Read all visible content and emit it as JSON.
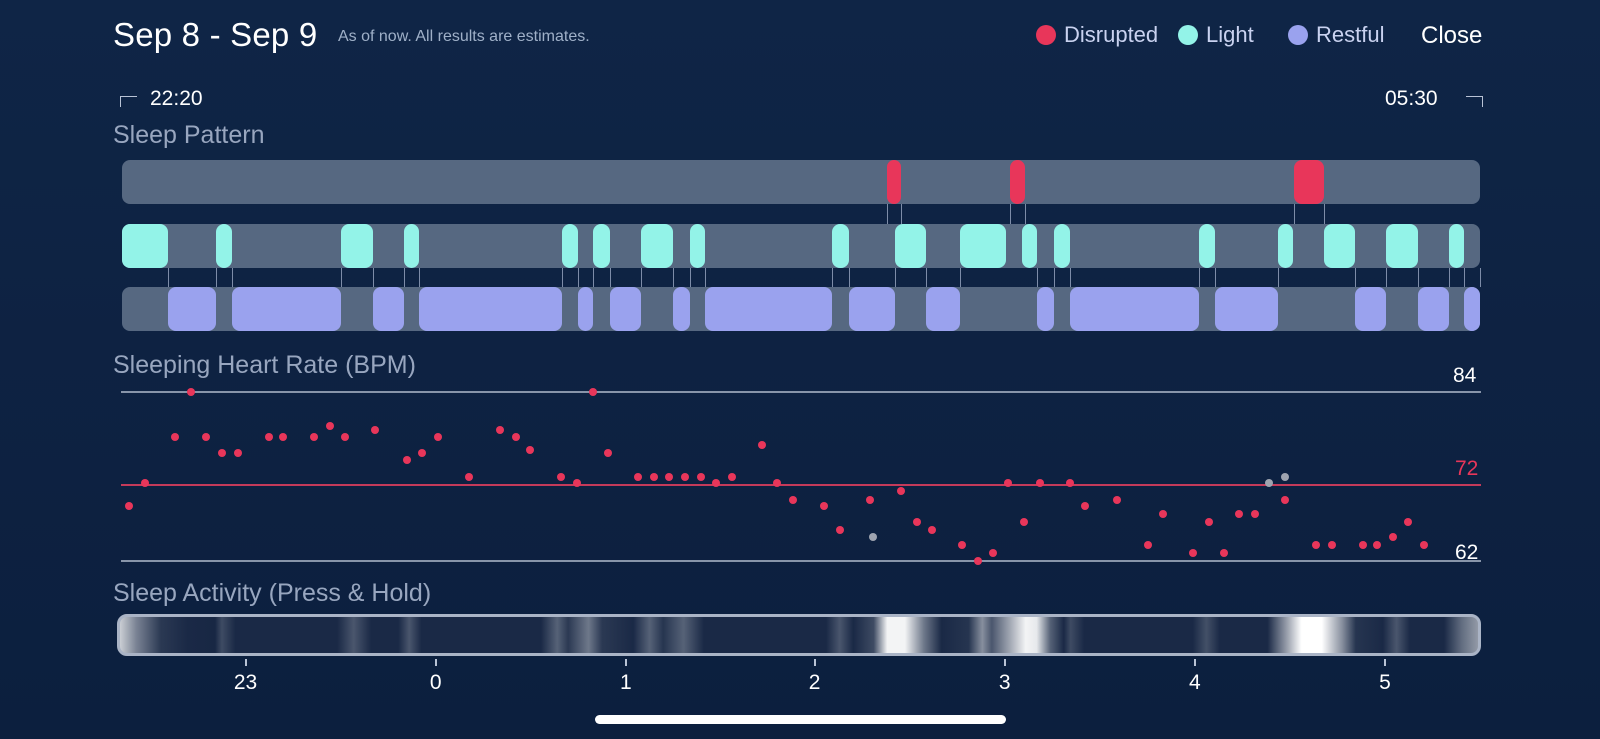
{
  "header": {
    "title": "Sep 8 - Sep 9",
    "subtitle": "As of now. All results are estimates.",
    "close_label": "Close"
  },
  "legend": [
    {
      "label": "Disrupted",
      "color": "#e8365a"
    },
    {
      "label": "Light",
      "color": "#93f3e8"
    },
    {
      "label": "Restful",
      "color": "#9aa2ee"
    }
  ],
  "time_range": {
    "start": "22:20",
    "end": "05:30"
  },
  "sleep_pattern": {
    "title": "Sleep Pattern",
    "disrupted": [
      [
        0.563,
        0.574
      ],
      [
        0.654,
        0.665
      ],
      [
        0.863,
        0.885
      ]
    ],
    "light": [
      [
        0.0,
        0.034
      ],
      [
        0.069,
        0.081
      ],
      [
        0.161,
        0.185
      ],
      [
        0.208,
        0.219
      ],
      [
        0.324,
        0.336
      ],
      [
        0.347,
        0.359
      ],
      [
        0.382,
        0.406
      ],
      [
        0.418,
        0.429
      ],
      [
        0.523,
        0.535
      ],
      [
        0.569,
        0.592
      ],
      [
        0.617,
        0.651
      ],
      [
        0.663,
        0.674
      ],
      [
        0.686,
        0.698
      ],
      [
        0.793,
        0.805
      ],
      [
        0.851,
        0.862
      ],
      [
        0.885,
        0.908
      ],
      [
        0.931,
        0.954
      ],
      [
        0.977,
        0.988
      ]
    ],
    "restful": [
      [
        0.034,
        0.069
      ],
      [
        0.081,
        0.161
      ],
      [
        0.185,
        0.208
      ],
      [
        0.219,
        0.324
      ],
      [
        0.336,
        0.347
      ],
      [
        0.359,
        0.382
      ],
      [
        0.406,
        0.418
      ],
      [
        0.429,
        0.523
      ],
      [
        0.535,
        0.569
      ],
      [
        0.592,
        0.617
      ],
      [
        0.674,
        0.686
      ],
      [
        0.698,
        0.793
      ],
      [
        0.805,
        0.851
      ],
      [
        0.908,
        0.931
      ],
      [
        0.954,
        0.977
      ],
      [
        0.988,
        1.0
      ]
    ]
  },
  "heart_rate": {
    "title": "Sleeping Heart Rate (BPM)",
    "max_label": "84",
    "avg_label": "72",
    "min_label": "62",
    "ymin": 62,
    "ymax": 84,
    "avg": 72,
    "points": [
      [
        0.005,
        69.1
      ],
      [
        0.017,
        72.1
      ],
      [
        0.04,
        78.1
      ],
      [
        0.052,
        84.0
      ],
      [
        0.063,
        78.1
      ],
      [
        0.075,
        76.1
      ],
      [
        0.087,
        76.1
      ],
      [
        0.11,
        78.1
      ],
      [
        0.121,
        78.1
      ],
      [
        0.144,
        78.1
      ],
      [
        0.156,
        79.6
      ],
      [
        0.167,
        78.1
      ],
      [
        0.19,
        79.0
      ],
      [
        0.214,
        75.1
      ],
      [
        0.225,
        76.1
      ],
      [
        0.237,
        78.1
      ],
      [
        0.26,
        73.0
      ],
      [
        0.283,
        79.0
      ],
      [
        0.295,
        78.1
      ],
      [
        0.306,
        76.5
      ],
      [
        0.329,
        73.0
      ],
      [
        0.341,
        72.1
      ],
      [
        0.353,
        84.0
      ],
      [
        0.364,
        76.1
      ],
      [
        0.387,
        73.0
      ],
      [
        0.399,
        73.0
      ],
      [
        0.41,
        73.0
      ],
      [
        0.422,
        73.0
      ],
      [
        0.434,
        73.0
      ],
      [
        0.445,
        72.1
      ],
      [
        0.457,
        73.0
      ],
      [
        0.48,
        77.1
      ],
      [
        0.491,
        72.1
      ],
      [
        0.503,
        70.0
      ],
      [
        0.526,
        69.1
      ],
      [
        0.538,
        66.1
      ],
      [
        0.561,
        70.0
      ],
      [
        0.584,
        71.1
      ],
      [
        0.596,
        67.1
      ],
      [
        0.607,
        66.1
      ],
      [
        0.63,
        64.1
      ],
      [
        0.642,
        62.0
      ],
      [
        0.653,
        63.0
      ],
      [
        0.664,
        72.1
      ],
      [
        0.676,
        67.1
      ],
      [
        0.688,
        72.1
      ],
      [
        0.711,
        72.1
      ],
      [
        0.722,
        69.1
      ],
      [
        0.746,
        70.0
      ],
      [
        0.769,
        64.1
      ],
      [
        0.78,
        68.1
      ],
      [
        0.803,
        63.0
      ],
      [
        0.815,
        67.1
      ],
      [
        0.826,
        63.0
      ],
      [
        0.837,
        68.1
      ],
      [
        0.849,
        68.1
      ],
      [
        0.872,
        70.0
      ],
      [
        0.895,
        64.1
      ],
      [
        0.907,
        64.1
      ],
      [
        0.93,
        64.1
      ],
      [
        0.941,
        64.1
      ],
      [
        0.953,
        65.1
      ],
      [
        0.964,
        67.1
      ],
      [
        0.976,
        64.1
      ]
    ],
    "gray_points": [
      [
        0.563,
        65.1
      ],
      [
        0.86,
        72.1
      ],
      [
        0.872,
        73.0
      ]
    ]
  },
  "sleep_activity": {
    "title": "Sleep Activity (Press & Hold)",
    "intensity": [
      [
        0.0,
        0.78
      ],
      [
        0.012,
        0.45
      ],
      [
        0.03,
        0.12
      ],
      [
        0.05,
        0.05
      ],
      [
        0.07,
        0.04
      ],
      [
        0.075,
        0.2
      ],
      [
        0.085,
        0.05
      ],
      [
        0.16,
        0.05
      ],
      [
        0.172,
        0.25
      ],
      [
        0.185,
        0.05
      ],
      [
        0.205,
        0.05
      ],
      [
        0.213,
        0.25
      ],
      [
        0.222,
        0.05
      ],
      [
        0.31,
        0.05
      ],
      [
        0.322,
        0.3
      ],
      [
        0.33,
        0.12
      ],
      [
        0.345,
        0.4
      ],
      [
        0.355,
        0.12
      ],
      [
        0.378,
        0.05
      ],
      [
        0.39,
        0.3
      ],
      [
        0.4,
        0.1
      ],
      [
        0.415,
        0.3
      ],
      [
        0.43,
        0.05
      ],
      [
        0.52,
        0.05
      ],
      [
        0.53,
        0.25
      ],
      [
        0.54,
        0.05
      ],
      [
        0.555,
        0.2
      ],
      [
        0.565,
        0.95
      ],
      [
        0.578,
        0.95
      ],
      [
        0.592,
        0.4
      ],
      [
        0.605,
        0.05
      ],
      [
        0.625,
        0.1
      ],
      [
        0.635,
        0.5
      ],
      [
        0.642,
        0.25
      ],
      [
        0.655,
        0.6
      ],
      [
        0.667,
        0.95
      ],
      [
        0.675,
        0.9
      ],
      [
        0.685,
        0.3
      ],
      [
        0.695,
        0.05
      ],
      [
        0.7,
        0.2
      ],
      [
        0.71,
        0.05
      ],
      [
        0.79,
        0.05
      ],
      [
        0.8,
        0.22
      ],
      [
        0.81,
        0.05
      ],
      [
        0.845,
        0.05
      ],
      [
        0.86,
        0.6
      ],
      [
        0.87,
        1.0
      ],
      [
        0.885,
        1.0
      ],
      [
        0.9,
        0.5
      ],
      [
        0.91,
        0.1
      ],
      [
        0.93,
        0.05
      ],
      [
        0.94,
        0.25
      ],
      [
        0.95,
        0.05
      ],
      [
        0.975,
        0.05
      ],
      [
        0.988,
        0.35
      ],
      [
        1.0,
        0.55
      ]
    ]
  },
  "x_axis": {
    "ticks": [
      {
        "label": "23",
        "pos": 0.091
      },
      {
        "label": "0",
        "pos": 0.231
      },
      {
        "label": "1",
        "pos": 0.371
      },
      {
        "label": "2",
        "pos": 0.51
      },
      {
        "label": "3",
        "pos": 0.65
      },
      {
        "label": "4",
        "pos": 0.79
      },
      {
        "label": "5",
        "pos": 0.93
      }
    ]
  }
}
